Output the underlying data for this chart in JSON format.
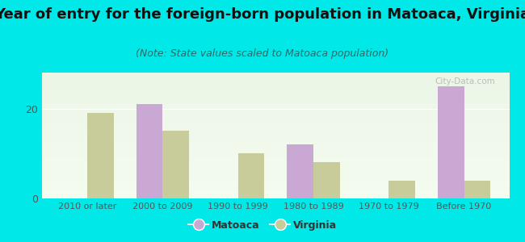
{
  "categories": [
    "2010 or later",
    "2000 to 2009",
    "1990 to 1999",
    "1980 to 1989",
    "1970 to 1979",
    "Before 1970"
  ],
  "matoaca_values": [
    0,
    21,
    0,
    12,
    0,
    25
  ],
  "virginia_values": [
    19,
    15,
    10,
    8,
    4,
    4
  ],
  "matoaca_color": "#c9a8d4",
  "virginia_color": "#c8cc9a",
  "title": "Year of entry for the foreign-born population in Matoaca, Virginia",
  "subtitle": "(Note: State values scaled to Matoaca population)",
  "title_fontsize": 13,
  "subtitle_fontsize": 9,
  "ylim": [
    0,
    28
  ],
  "yticks": [
    0,
    20
  ],
  "bar_width": 0.35,
  "background_outer": "#00e8e8",
  "legend_matoaca": "Matoaca",
  "legend_virginia": "Virginia",
  "watermark": "City-Data.com",
  "plot_bg_top": "#e8f5e4",
  "plot_bg_bottom": "#f5faf0",
  "grid_color": "#e0e8d8",
  "tick_color": "#555555",
  "title_color": "#111111",
  "subtitle_color": "#336666"
}
